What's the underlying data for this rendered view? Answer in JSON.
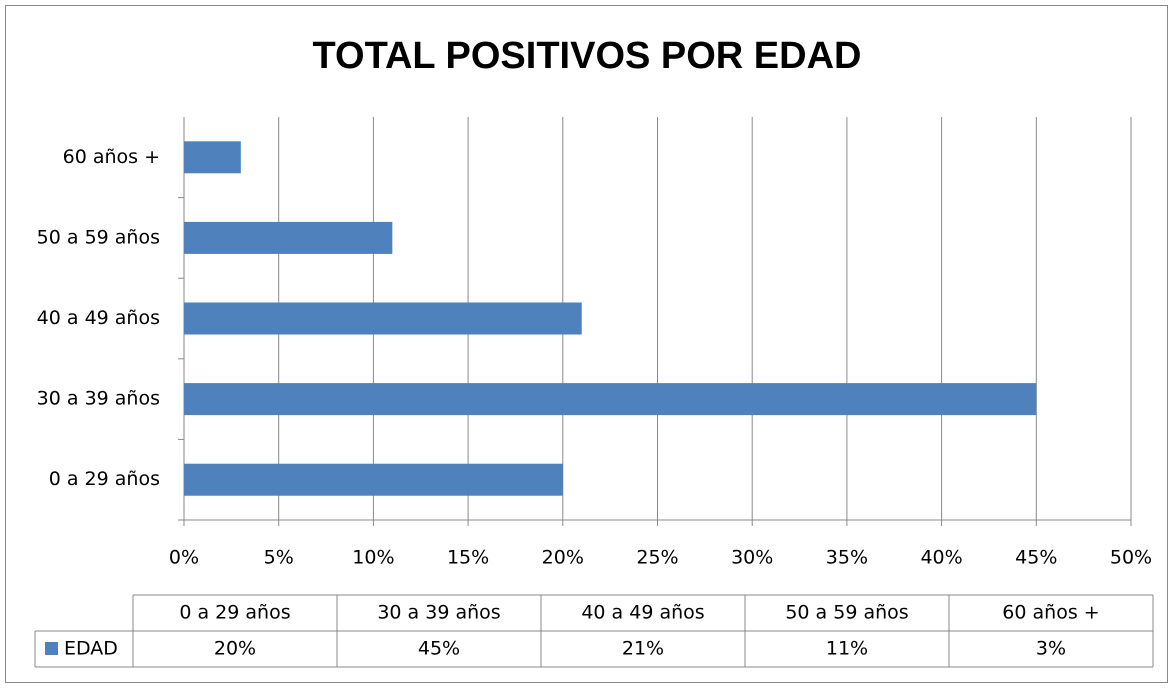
{
  "chart_data": {
    "type": "bar",
    "orientation": "horizontal",
    "title": "TOTAL POSITIVOS POR EDAD",
    "categories": [
      "0 a 29 años",
      "30 a 39 años",
      "40 a 49 años",
      "50 a 59 años",
      "60 años +"
    ],
    "series": [
      {
        "name": "EDAD",
        "color": "#4f81bd",
        "values": [
          20,
          45,
          21,
          11,
          3
        ],
        "value_labels": [
          "20%",
          "45%",
          "21%",
          "11%",
          "3%"
        ]
      }
    ],
    "xlim": [
      0,
      50
    ],
    "xticks": [
      {
        "value": 0,
        "label": "0%"
      },
      {
        "value": 5,
        "label": "5%"
      },
      {
        "value": 10,
        "label": "10%"
      },
      {
        "value": 15,
        "label": "15%"
      },
      {
        "value": 20,
        "label": "20%"
      },
      {
        "value": 25,
        "label": "25%"
      },
      {
        "value": 30,
        "label": "30%"
      },
      {
        "value": 35,
        "label": "35%"
      },
      {
        "value": 40,
        "label": "40%"
      },
      {
        "value": 45,
        "label": "45%"
      },
      {
        "value": 50,
        "label": "50%"
      }
    ],
    "grid": true,
    "data_table": true
  }
}
